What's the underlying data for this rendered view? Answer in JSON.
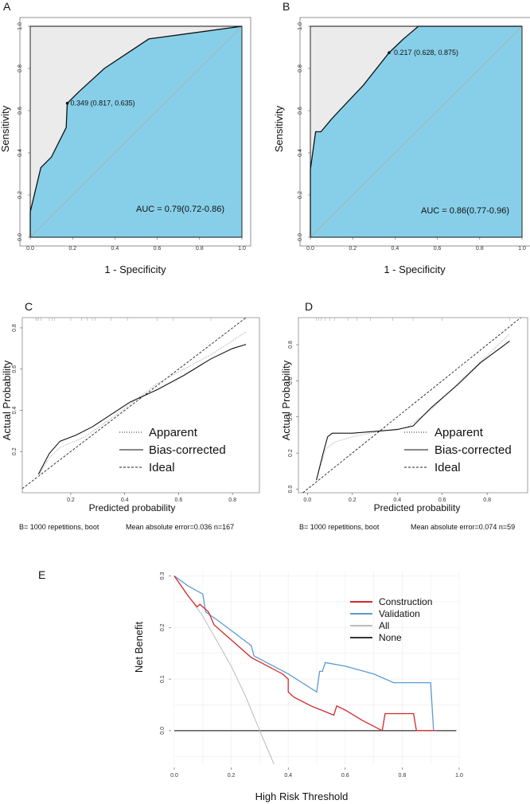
{
  "panels": {
    "a": {
      "label": "A"
    },
    "b": {
      "label": "B"
    },
    "c": {
      "label": "C"
    },
    "d": {
      "label": "D"
    },
    "e": {
      "label": "E"
    }
  },
  "calibration_legend": {
    "apparent": "Apparent",
    "bias": "Bias-corrected",
    "ideal": "Ideal"
  },
  "chart_data": [
    {
      "id": "A",
      "type": "line",
      "subtype": "roc",
      "xlabel": "1 - Specificity",
      "ylabel": "Sensitivity",
      "xticks": [
        "0.0",
        "0.2",
        "0.4",
        "0.6",
        "0.8",
        "1.0"
      ],
      "yticks": [
        "0.0",
        "0.2",
        "0.4",
        "0.6",
        "0.8",
        "1.0"
      ],
      "xlim": [
        0,
        1
      ],
      "ylim": [
        0,
        1
      ],
      "curve": [
        [
          0,
          0
        ],
        [
          0,
          0.12
        ],
        [
          0.05,
          0.33
        ],
        [
          0.1,
          0.38
        ],
        [
          0.17,
          0.52
        ],
        [
          0.175,
          0.635
        ],
        [
          0.23,
          0.69
        ],
        [
          0.35,
          0.8
        ],
        [
          0.47,
          0.88
        ],
        [
          0.56,
          0.94
        ],
        [
          1,
          1
        ]
      ],
      "cutoff": {
        "x": 0.175,
        "y": 0.635,
        "label": "0.349 (0.817, 0.635)"
      },
      "auc_text": "AUC = 0.79(0.72-0.86)"
    },
    {
      "id": "B",
      "type": "line",
      "subtype": "roc",
      "xlabel": "1 - Specificity",
      "ylabel": "Sensitivity",
      "xticks": [
        "0.0",
        "0.2",
        "0.4",
        "0.6",
        "0.8",
        "1.0"
      ],
      "yticks": [
        "0.0",
        "0.2",
        "0.4",
        "0.6",
        "0.8",
        "1.0"
      ],
      "xlim": [
        0,
        1
      ],
      "ylim": [
        0,
        1
      ],
      "curve": [
        [
          0,
          0
        ],
        [
          0,
          0.32
        ],
        [
          0.025,
          0.5
        ],
        [
          0.05,
          0.5
        ],
        [
          0.1,
          0.56
        ],
        [
          0.16,
          0.625
        ],
        [
          0.25,
          0.72
        ],
        [
          0.372,
          0.875
        ],
        [
          0.44,
          0.94
        ],
        [
          0.51,
          1
        ],
        [
          1,
          1
        ]
      ],
      "cutoff": {
        "x": 0.372,
        "y": 0.875,
        "label": "0.217 (0.628, 0.875)"
      },
      "auc_text": "AUC = 0.86(0.77-0.96)"
    },
    {
      "id": "C",
      "type": "line",
      "subtype": "calibration",
      "xlabel": "Predicted probability",
      "ylabel": "Actual Probability",
      "xticks": [
        "0.2",
        "0.4",
        "0.6",
        "0.8"
      ],
      "yticks": [
        "0.2",
        "0.4",
        "0.6",
        "0.8"
      ],
      "xlim": [
        0.02,
        0.9
      ],
      "ylim": [
        0.0,
        0.85
      ],
      "rug": [
        0.07,
        0.075,
        0.08,
        0.09,
        0.12,
        0.13,
        0.14,
        0.2,
        0.24,
        0.26,
        0.28,
        0.29,
        0.35,
        0.41,
        0.52,
        0.58,
        0.72
      ],
      "apparent": [
        [
          0.08,
          0.08
        ],
        [
          0.12,
          0.17
        ],
        [
          0.16,
          0.22
        ],
        [
          0.25,
          0.27
        ],
        [
          0.35,
          0.36
        ],
        [
          0.42,
          0.43
        ],
        [
          0.52,
          0.53
        ],
        [
          0.62,
          0.6
        ],
        [
          0.72,
          0.67
        ],
        [
          0.85,
          0.78
        ]
      ],
      "bias_corrected": [
        [
          0.08,
          0.09
        ],
        [
          0.12,
          0.19
        ],
        [
          0.16,
          0.25
        ],
        [
          0.22,
          0.28
        ],
        [
          0.28,
          0.32
        ],
        [
          0.35,
          0.38
        ],
        [
          0.42,
          0.44
        ],
        [
          0.52,
          0.5
        ],
        [
          0.62,
          0.57
        ],
        [
          0.72,
          0.65
        ],
        [
          0.8,
          0.7
        ],
        [
          0.85,
          0.72
        ]
      ],
      "footer_left": "B= 1000 repetitions, boot",
      "footer_right": "Mean absolute error=0.036 n=167"
    },
    {
      "id": "D",
      "type": "line",
      "subtype": "calibration",
      "xlabel": "Predicted probability",
      "ylabel": "Actual Probability",
      "xticks": [
        "0.0",
        "0.2",
        "0.4",
        "0.6",
        "0.8"
      ],
      "yticks": [
        "0.0",
        "0.2",
        "0.4",
        "0.6",
        "0.8"
      ],
      "xlim": [
        -0.04,
        0.98
      ],
      "ylim": [
        -0.02,
        0.95
      ],
      "rug": [
        0.04,
        0.05,
        0.06,
        0.08,
        0.1,
        0.12,
        0.18,
        0.22,
        0.28,
        0.38,
        0.47,
        0.6,
        0.9
      ],
      "apparent": [
        [
          0.04,
          0.05
        ],
        [
          0.08,
          0.22
        ],
        [
          0.12,
          0.26
        ],
        [
          0.2,
          0.29
        ],
        [
          0.32,
          0.32
        ],
        [
          0.44,
          0.34
        ],
        [
          0.55,
          0.44
        ],
        [
          0.68,
          0.6
        ],
        [
          0.8,
          0.74
        ],
        [
          0.9,
          0.86
        ]
      ],
      "bias_corrected": [
        [
          0.04,
          0.05
        ],
        [
          0.07,
          0.2
        ],
        [
          0.09,
          0.29
        ],
        [
          0.11,
          0.31
        ],
        [
          0.2,
          0.31
        ],
        [
          0.3,
          0.32
        ],
        [
          0.4,
          0.33
        ],
        [
          0.47,
          0.35
        ],
        [
          0.55,
          0.45
        ],
        [
          0.67,
          0.58
        ],
        [
          0.77,
          0.7
        ],
        [
          0.9,
          0.82
        ]
      ],
      "footer_left": "B= 1000 repetitions, boot",
      "footer_right": "Mean absolute error=0.074 n=59"
    },
    {
      "id": "E",
      "type": "line",
      "subtype": "decision_curve",
      "xlabel": "High Risk Threshold",
      "ylabel": "Net Benefit",
      "xticks": [
        "0.0",
        "0.2",
        "0.4",
        "0.6",
        "0.8",
        "1.0"
      ],
      "yticks": [
        "0.0",
        "0.1",
        "0.2",
        "0.3"
      ],
      "xlim": [
        0,
        1
      ],
      "ylim": [
        -0.065,
        0.31
      ],
      "series": [
        {
          "name": "Construction",
          "color": "#d62728",
          "points": [
            [
              0,
              0.3
            ],
            [
              0.05,
              0.26
            ],
            [
              0.08,
              0.24
            ],
            [
              0.09,
              0.245
            ],
            [
              0.12,
              0.23
            ],
            [
              0.14,
              0.205
            ],
            [
              0.27,
              0.142
            ],
            [
              0.38,
              0.11
            ],
            [
              0.4,
              0.1
            ],
            [
              0.4,
              0.075
            ],
            [
              0.42,
              0.065
            ],
            [
              0.48,
              0.048
            ],
            [
              0.56,
              0.03
            ],
            [
              0.57,
              0.048
            ],
            [
              0.6,
              0.04
            ],
            [
              0.66,
              0.02
            ],
            [
              0.73,
              0.0
            ],
            [
              0.74,
              0.033
            ],
            [
              0.84,
              0.033
            ],
            [
              0.85,
              0.0
            ],
            [
              0.92,
              0.0
            ]
          ]
        },
        {
          "name": "Validation",
          "color": "#5b9bd5",
          "points": [
            [
              0,
              0.3
            ],
            [
              0.05,
              0.28
            ],
            [
              0.1,
              0.265
            ],
            [
              0.11,
              0.23
            ],
            [
              0.15,
              0.215
            ],
            [
              0.27,
              0.165
            ],
            [
              0.28,
              0.145
            ],
            [
              0.4,
              0.11
            ],
            [
              0.5,
              0.075
            ],
            [
              0.51,
              0.115
            ],
            [
              0.52,
              0.115
            ],
            [
              0.53,
              0.132
            ],
            [
              0.6,
              0.125
            ],
            [
              0.7,
              0.11
            ],
            [
              0.77,
              0.093
            ],
            [
              0.9,
              0.093
            ],
            [
              0.91,
              0.0
            ],
            [
              0.92,
              0.0
            ]
          ]
        },
        {
          "name": "All",
          "color": "#bbbbbb",
          "points": [
            [
              0,
              0.3
            ],
            [
              0.1,
              0.222
            ],
            [
              0.2,
              0.125
            ],
            [
              0.25,
              0.067
            ],
            [
              0.3,
              0.0
            ],
            [
              0.35,
              -0.077
            ]
          ]
        },
        {
          "name": "None",
          "color": "#333333",
          "points": [
            [
              0,
              0
            ],
            [
              0.99,
              0
            ]
          ]
        }
      ]
    }
  ]
}
